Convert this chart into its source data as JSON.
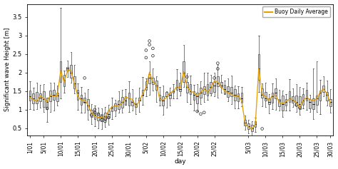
{
  "xlabel": "day",
  "ylabel": "Significant wave Height [m]",
  "ylim": [
    0.3,
    3.85
  ],
  "yticks": [
    0.5,
    1.0,
    1.5,
    2.0,
    2.5,
    3.0,
    3.5
  ],
  "legend_label": "Buoy Daily Average",
  "legend_color": "#E8A000",
  "n_days": 89,
  "seed": 12345,
  "tick_labels": [
    "1/01",
    "5/01",
    "10/01",
    "15/01",
    "20/01",
    "25/01",
    "30/01",
    "5/02",
    "10/02",
    "15/02",
    "20/02",
    "25/02",
    "5/03",
    "10/03",
    "15/03",
    "20/03",
    "25/03",
    "30/03"
  ],
  "tick_positions": [
    0,
    4,
    9,
    14,
    19,
    24,
    29,
    34,
    39,
    44,
    49,
    54,
    64,
    69,
    74,
    79,
    84,
    88
  ]
}
